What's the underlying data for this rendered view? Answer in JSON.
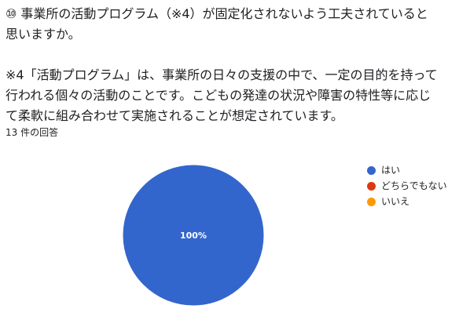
{
  "question": {
    "line1": "⑩ 事業所の活動プログラム（※4）が固定化されないよう工夫されていると",
    "line2": "思いますか。",
    "note1": "※4「活動プログラム」は、事業所の日々の支援の中で、一定の目的を持って",
    "note2": "行われる個々の活動のことです。こどもの発達の状況や障害の特性等に応じ",
    "note3": "て柔軟に組み合わせて実施されることが想定されています。"
  },
  "responses_count": "13 件の回答",
  "chart_data": {
    "type": "pie",
    "categories": [
      "はい",
      "どちらでもない",
      "いいえ"
    ],
    "values": [
      100,
      0,
      0
    ],
    "colors": [
      "#3366cc",
      "#dc3912",
      "#ff9900"
    ],
    "slice_label": "100%",
    "legend_position": "right"
  }
}
